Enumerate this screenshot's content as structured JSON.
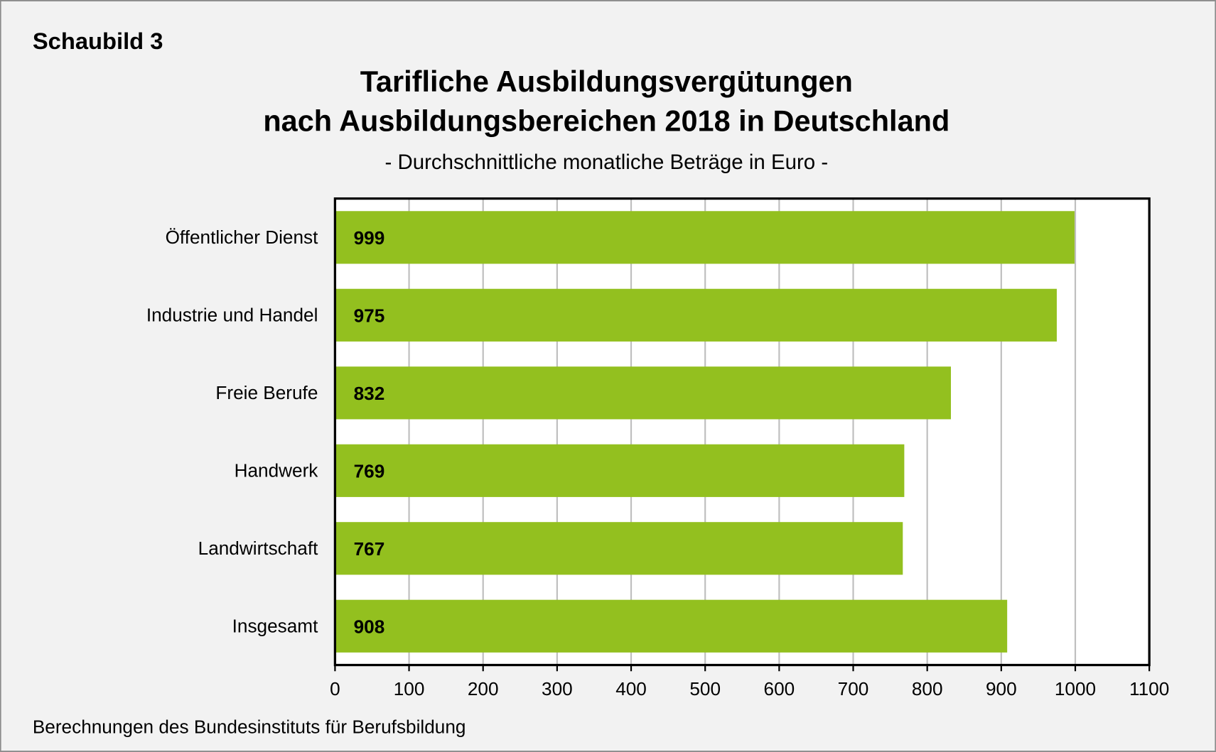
{
  "label": "Schaubild 3",
  "footer": "Berechnungen des Bundesinstituts für Berufsbildung",
  "chart_data": {
    "type": "bar",
    "orientation": "horizontal",
    "title_lines": [
      "Tarifliche Ausbildungsvergütungen",
      "nach Ausbildungsbereichen 2018 in Deutschland"
    ],
    "subtitle": "- Durchschnittliche monatliche Beträge in Euro -",
    "categories": [
      "Öffentlicher Dienst",
      "Industrie und Handel",
      "Freie Berufe",
      "Handwerk",
      "Landwirtschaft",
      "Insgesamt"
    ],
    "values": [
      999,
      975,
      832,
      769,
      767,
      908
    ],
    "data_labels": [
      "999",
      "975",
      "832",
      "769",
      "767",
      "908"
    ],
    "xlim": [
      0,
      1100
    ],
    "xticks": [
      "0",
      "100",
      "200",
      "300",
      "400",
      "500",
      "600",
      "700",
      "800",
      "900",
      "1000",
      "1100"
    ],
    "grid": true,
    "bar_color": "#93c01f",
    "legend": "none"
  }
}
